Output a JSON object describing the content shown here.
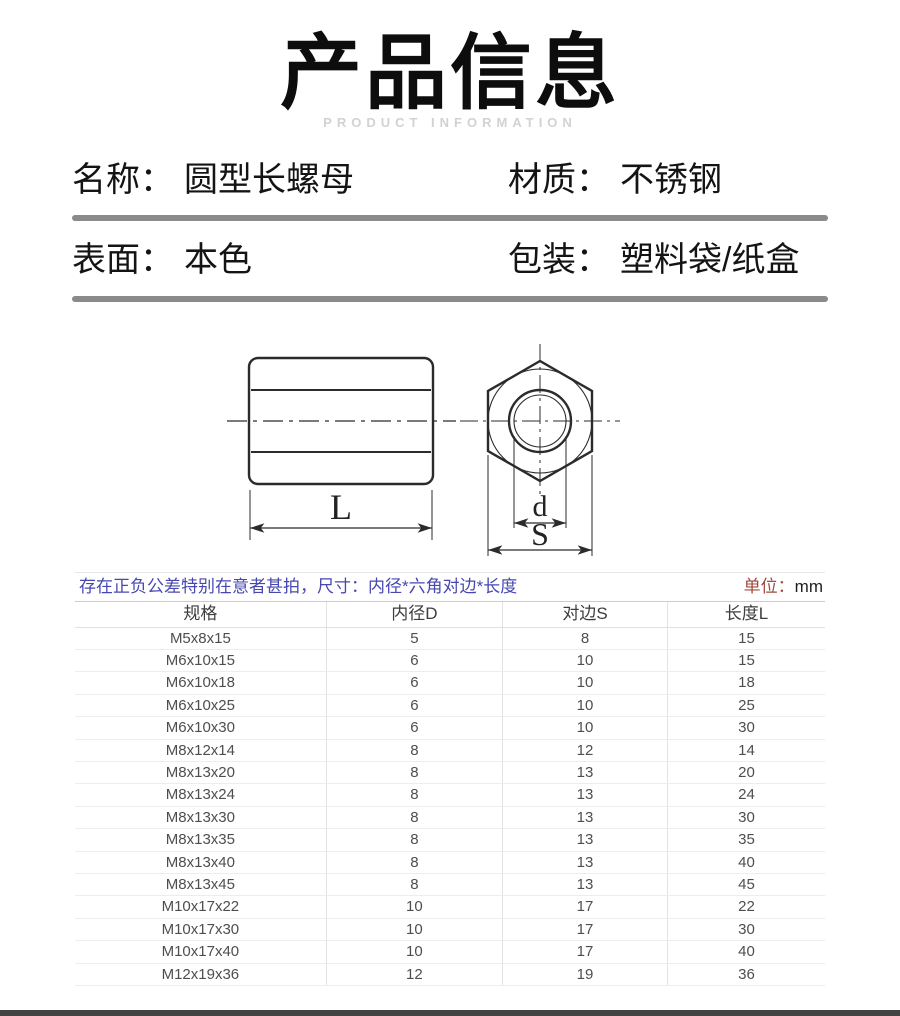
{
  "page": {
    "title": "产品信息",
    "subtitle": "PRODUCT INFORMATION"
  },
  "info": {
    "items": [
      {
        "label": "名称：",
        "value": "圆型长螺母"
      },
      {
        "label": "材质：",
        "value": "不锈钢"
      },
      {
        "label": "表面：",
        "value": "本色"
      },
      {
        "label": "包装：",
        "value": "塑料袋/纸盒"
      }
    ]
  },
  "drawing": {
    "dim_length": "L",
    "dim_diameter": "d",
    "dim_flats": "S"
  },
  "spec_table": {
    "note": "存在正负公差特别在意者甚拍，尺寸：内径*六角对边*长度",
    "unit_label": "单位：",
    "unit_value": "mm",
    "headers": [
      "规格",
      "内径D",
      "对边S",
      "长度L"
    ],
    "rows": [
      [
        "M5x8x15",
        "5",
        "8",
        "15"
      ],
      [
        "M6x10x15",
        "6",
        "10",
        "15"
      ],
      [
        "M6x10x18",
        "6",
        "10",
        "18"
      ],
      [
        "M6x10x25",
        "6",
        "10",
        "25"
      ],
      [
        "M6x10x30",
        "6",
        "10",
        "30"
      ],
      [
        "M8x12x14",
        "8",
        "12",
        "14"
      ],
      [
        "M8x13x20",
        "8",
        "13",
        "20"
      ],
      [
        "M8x13x24",
        "8",
        "13",
        "24"
      ],
      [
        "M8x13x30",
        "8",
        "13",
        "30"
      ],
      [
        "M8x13x35",
        "8",
        "13",
        "35"
      ],
      [
        "M8x13x40",
        "8",
        "13",
        "40"
      ],
      [
        "M8x13x45",
        "8",
        "13",
        "45"
      ],
      [
        "M10x17x22",
        "10",
        "17",
        "22"
      ],
      [
        "M10x17x30",
        "10",
        "17",
        "30"
      ],
      [
        "M10x17x40",
        "10",
        "17",
        "40"
      ],
      [
        "M12x19x36",
        "12",
        "19",
        "36"
      ]
    ]
  },
  "colors": {
    "note_blue": "#4747b2",
    "unit_red": "#a04a3e",
    "divider_gray": "#8a8a8a",
    "subtitle_gray": "#d2d2d2",
    "drawing_stroke": "#2b2b2b",
    "bottom_strip": "#434343"
  }
}
